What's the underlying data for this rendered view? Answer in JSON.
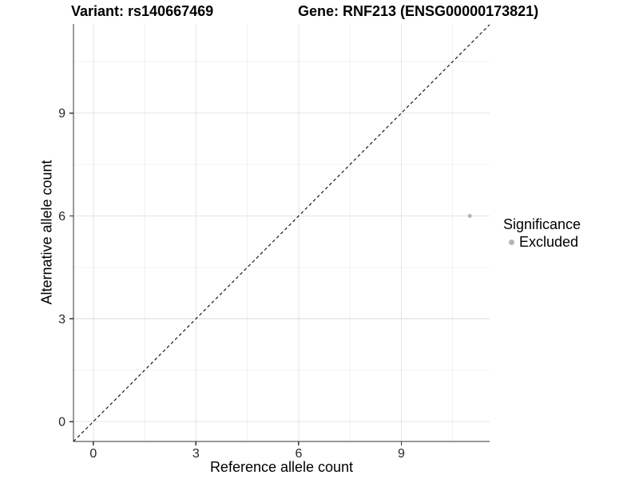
{
  "colors": {
    "background": "#ffffff",
    "grid_major": "#e4e4e4",
    "grid_minor": "#f1f1f1",
    "axis_line": "#333333",
    "tick_mark": "#333333",
    "tick_text": "#262626",
    "title_text": "#000000",
    "point_gray": "#b5b5b5",
    "dashed_line": "#1a1a1a"
  },
  "chart_data": {
    "type": "scatter",
    "title_left": "Variant: rs140667469",
    "title_right": "Gene: RNF213 (ENSG00000173821)",
    "xlabel": "Reference allele count",
    "ylabel": "Alternative allele count",
    "xlim": [
      -0.58,
      11.58
    ],
    "ylim": [
      -0.58,
      11.6
    ],
    "x_ticks": [
      0,
      3,
      6,
      9
    ],
    "y_ticks": [
      0,
      3,
      6,
      9
    ],
    "x_minor_ticks": [
      1.5,
      4.5,
      7.5,
      10.5
    ],
    "y_minor_ticks": [
      1.5,
      4.5,
      7.5,
      10.5
    ],
    "grid": "major and minor, light gray on white panel",
    "reference_line": {
      "type": "identity",
      "equation": "y = x",
      "style": "dashed",
      "color": "#1a1a1a"
    },
    "series": [
      {
        "name": "Excluded",
        "color": "#b5b5b5",
        "points": [
          {
            "x": 11,
            "y": 6
          }
        ]
      }
    ],
    "legend": {
      "title": "Significance",
      "position": "right",
      "entries": [
        {
          "label": "Excluded",
          "color": "#b5b5b5"
        }
      ]
    }
  }
}
